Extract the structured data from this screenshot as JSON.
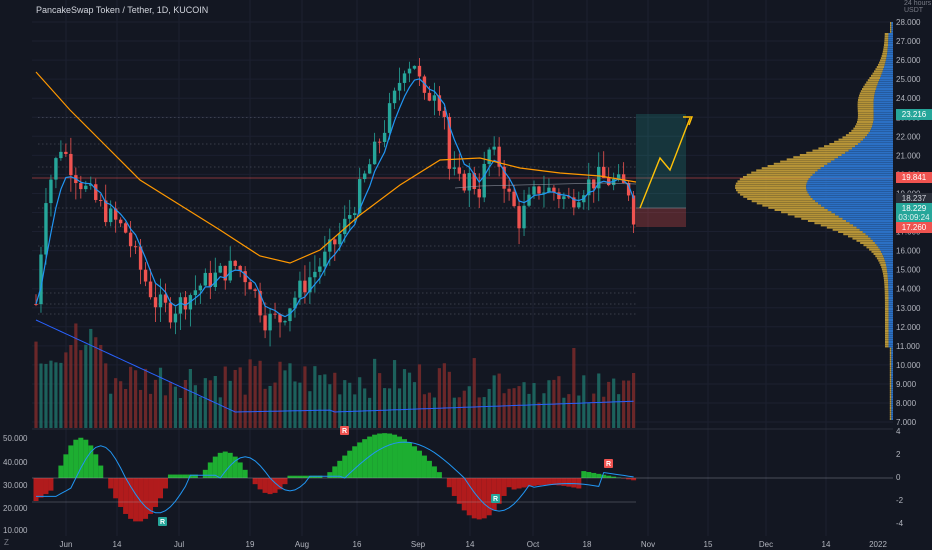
{
  "header": {
    "title": "PancakeSwap Token / Tether, 1D, KUCOIN"
  },
  "price_axis": {
    "currency": "USDT",
    "corner_note": "24 hours",
    "ticks": [
      "28.000",
      "27.000",
      "26.000",
      "25.000",
      "24.000",
      "23.000",
      "22.000",
      "21.000",
      "20.000",
      "19.000",
      "18.000",
      "17.000",
      "16.000",
      "15.000",
      "14.000",
      "13.000",
      "12.000",
      "11.000",
      "10.000",
      "9.000",
      "8.000",
      "7.000"
    ],
    "tags": {
      "target": "23.216",
      "ma": "19.841",
      "last_a": "18.237",
      "last_b": "18.229",
      "countdown": "03:09:24",
      "stop": "17.260"
    }
  },
  "oscillator_axis": {
    "left_ticks": [
      "50.000",
      "40.000",
      "30.000",
      "20.000",
      "10.000"
    ],
    "right_ticks": [
      "4",
      "2",
      "0",
      "-2",
      "-4"
    ],
    "markers": [
      "R",
      "R",
      "R",
      "R"
    ]
  },
  "time_axis": {
    "labels": [
      "Jun",
      "14",
      "Jul",
      "19",
      "Aug",
      "16",
      "Sep",
      "14",
      "Oct",
      "18",
      "Nov",
      "15",
      "Dec",
      "14",
      "2022"
    ],
    "corner": "Z"
  },
  "colors": {
    "background": "#131722",
    "up": "#26a69a",
    "down": "#ef5350",
    "ema_fast": "#2196f3",
    "ema_slow": "#ff9800",
    "profile_up": "#2f7ad6",
    "profile_down": "#c8a13a",
    "osc_pos": "#1fbf33",
    "osc_neg": "#c31c1c",
    "projection": "#ffc107"
  },
  "icons": [
    "r-signal-icon",
    "time-zone-icon"
  ]
}
